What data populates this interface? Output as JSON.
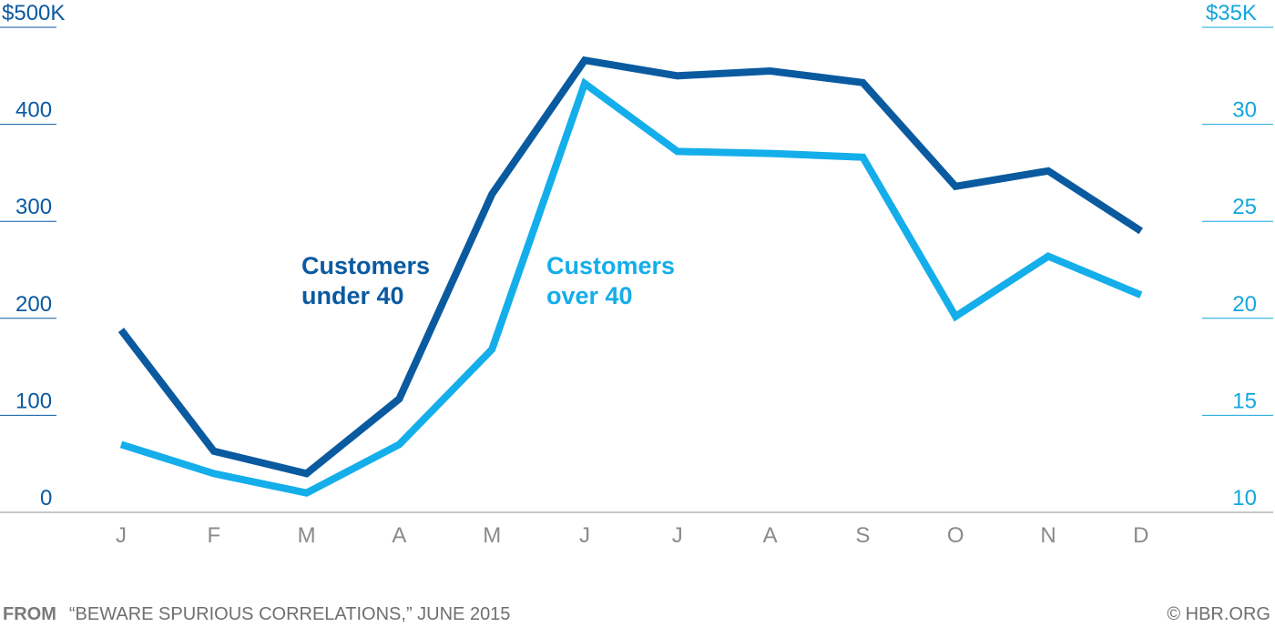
{
  "chart_data": {
    "type": "line",
    "categories": [
      "J",
      "F",
      "M",
      "A",
      "M",
      "J",
      "J",
      "A",
      "S",
      "O",
      "N",
      "D"
    ],
    "y_left": {
      "range": [
        0,
        500
      ],
      "ticks": [
        0,
        100,
        200,
        300,
        400,
        500
      ],
      "tick_labels": [
        "0",
        "100",
        "200",
        "300",
        "400",
        "$500K"
      ]
    },
    "y_right": {
      "range": [
        10,
        35
      ],
      "ticks": [
        10,
        15,
        20,
        25,
        30,
        35
      ],
      "tick_labels": [
        "10",
        "15",
        "20",
        "25",
        "30",
        "$35K"
      ]
    },
    "grid": "horizontal",
    "series": [
      {
        "name": "Customers under 40",
        "label_lines": [
          "Customers",
          "under 40"
        ],
        "axis": "left",
        "color": "#0a5aa0",
        "values": [
          188,
          63,
          40,
          117,
          328,
          466,
          450,
          455,
          443,
          336,
          352,
          290
        ]
      },
      {
        "name": "Customers over 40",
        "label_lines": [
          "Customers",
          "over 40"
        ],
        "axis": "right",
        "color": "#14aeea",
        "values": [
          13.5,
          12.0,
          11.0,
          13.5,
          18.4,
          32.1,
          28.6,
          28.5,
          28.3,
          20.1,
          23.2,
          21.2
        ]
      }
    ]
  },
  "footer": {
    "lead": "FROM",
    "source": "“BEWARE SPURIOUS CORRELATIONS,” JUNE 2015",
    "credit": "© HBR.ORG"
  }
}
